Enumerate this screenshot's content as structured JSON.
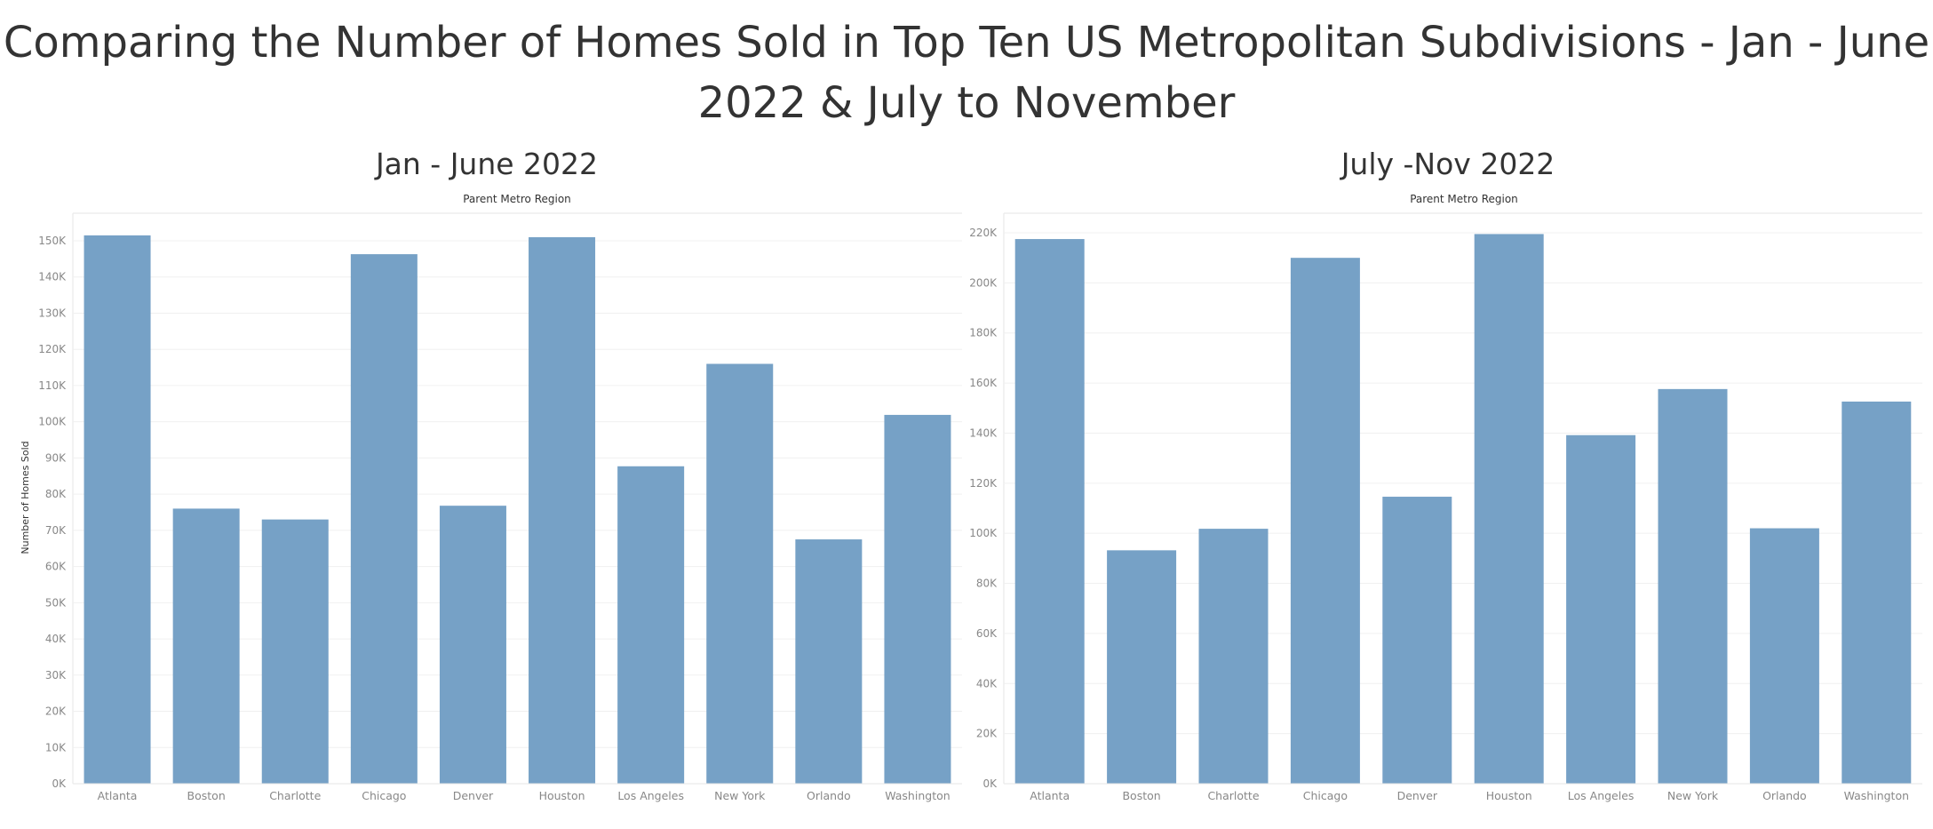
{
  "main_title": "Comparing the Number of Homes Sold in Top Ten US Metropolitan Subdivisions - Jan - June 2022 & July to November",
  "colors": {
    "bar": "#76a1c6",
    "title": "#333333",
    "tick": "#888888",
    "grid": "#f0f0f0"
  },
  "chart_data": [
    {
      "type": "bar",
      "title": "Jan - June 2022",
      "column_header": "Parent Metro Region",
      "ylabel": "Number of Homes Sold",
      "xlabel": "",
      "ylim": [
        0,
        150000
      ],
      "yticks": [
        0,
        10000,
        20000,
        30000,
        40000,
        50000,
        60000,
        70000,
        80000,
        90000,
        100000,
        110000,
        120000,
        130000,
        140000,
        150000
      ],
      "ytick_labels": [
        "0K",
        "10K",
        "20K",
        "30K",
        "40K",
        "50K",
        "60K",
        "70K",
        "80K",
        "90K",
        "100K",
        "110K",
        "120K",
        "130K",
        "140K",
        "150K"
      ],
      "grid": true,
      "categories": [
        "Atlanta",
        "Boston",
        "Charlotte",
        "Chicago",
        "Denver",
        "Houston",
        "Los Angeles",
        "New York",
        "Orlando",
        "Washington"
      ],
      "values": [
        151500,
        76000,
        73000,
        146300,
        76800,
        151000,
        87700,
        116000,
        67500,
        101900
      ]
    },
    {
      "type": "bar",
      "title": "July -Nov 2022",
      "column_header": "Parent Metro Region",
      "ylabel": "",
      "xlabel": "",
      "ylim": [
        0,
        220000
      ],
      "yticks": [
        0,
        20000,
        40000,
        60000,
        80000,
        100000,
        120000,
        140000,
        160000,
        180000,
        200000,
        220000
      ],
      "ytick_labels": [
        "0K",
        "20K",
        "40K",
        "60K",
        "80K",
        "100K",
        "120K",
        "140K",
        "160K",
        "180K",
        "200K",
        "220K"
      ],
      "grid": true,
      "categories": [
        "Atlanta",
        "Boston",
        "Charlotte",
        "Chicago",
        "Denver",
        "Houston",
        "Los Angeles",
        "New York",
        "Orlando",
        "Washington"
      ],
      "values": [
        217500,
        93200,
        101800,
        210000,
        114600,
        219500,
        139200,
        157600,
        102000,
        152600
      ]
    }
  ]
}
